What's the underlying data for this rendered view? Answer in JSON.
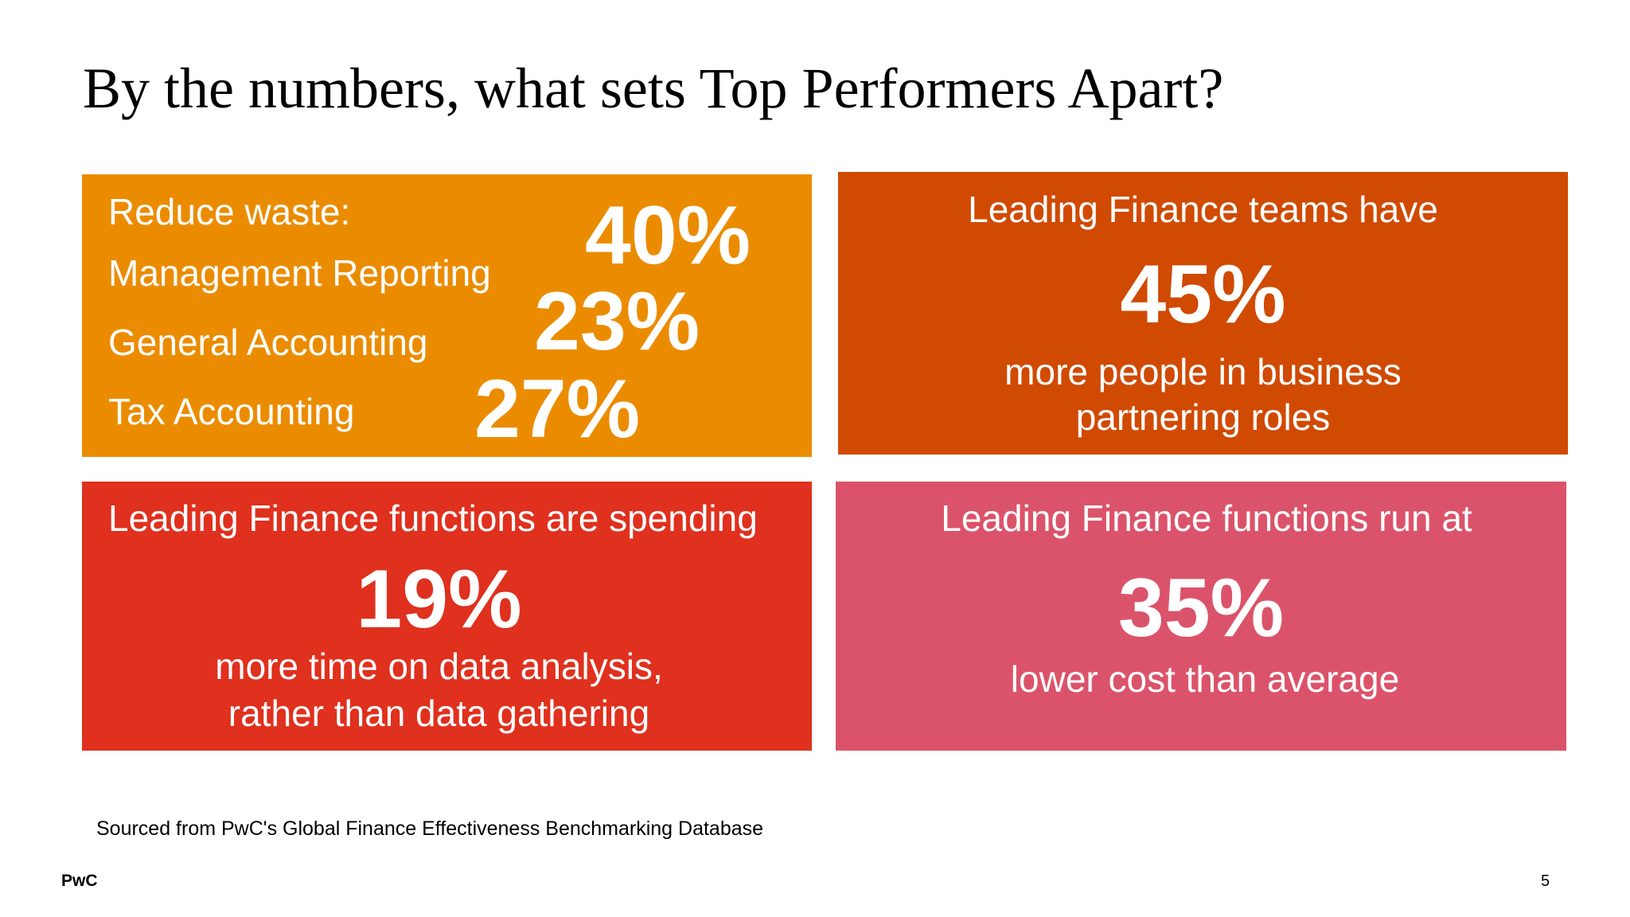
{
  "title": "By the numbers, what sets Top Performers Apart?",
  "tiles": {
    "waste": {
      "heading": "Reduce waste:",
      "items": [
        {
          "label": "Management Reporting",
          "value": "40%"
        },
        {
          "label": "General Accounting",
          "value": "23%"
        },
        {
          "label": "Tax Accounting",
          "value": "27%"
        }
      ],
      "color": "#eb8c00"
    },
    "partnering": {
      "heading": "Leading Finance teams have",
      "value": "45%",
      "line1": "more people in business",
      "line2": "partnering roles",
      "color": "#d04a02"
    },
    "analysis": {
      "heading": "Leading Finance functions are spending",
      "value": "19%",
      "line1": "more time on data analysis,",
      "line2": "rather than data gathering",
      "color": "#e0301e"
    },
    "cost": {
      "heading": "Leading Finance functions run at",
      "value": "35%",
      "line1": "lower cost than average",
      "color": "#db536a"
    }
  },
  "footnote": "Sourced from PwC's Global Finance Effectiveness Benchmarking Database",
  "brand": "PwC",
  "page_number": "5"
}
